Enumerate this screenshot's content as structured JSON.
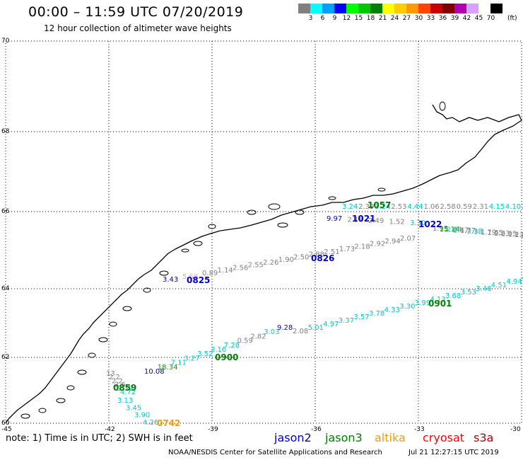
{
  "header": {
    "title": "00:00 – 11:59 UTC 07/20/2019",
    "subtitle": "12 hour collection of altimeter wave heights"
  },
  "color_scale": {
    "colors": [
      "#808080",
      "#00ffff",
      "#00a0ff",
      "#0000ff",
      "#00ff00",
      "#00c800",
      "#008000",
      "#ffff00",
      "#ffcc00",
      "#ff9900",
      "#ff4500",
      "#c80000",
      "#800000",
      "#b000b0",
      "#d8a0ff",
      "#ffffff",
      "#000000"
    ],
    "labels": [
      "3",
      "6",
      "9",
      "12",
      "15",
      "18",
      "21",
      "24",
      "27",
      "30",
      "33",
      "36",
      "39",
      "42",
      "45",
      "70"
    ],
    "unit": "(ft)"
  },
  "axes": {
    "lat_labels": [
      "70",
      "68",
      "66",
      "64",
      "62",
      "60"
    ],
    "lon_labels": [
      "-45",
      "-42",
      "-39",
      "-36",
      "-33",
      "-30"
    ]
  },
  "tracks": [
    {
      "satellite": "jason3",
      "time": "1057",
      "color": "#008000",
      "labels": [
        {
          "text": "3.24",
          "color": "#00c8c8"
        },
        {
          "text": "2.39",
          "color": "#808080"
        },
        {
          "text": "3.24",
          "color": "#00c8c8"
        },
        {
          "text": "2.53",
          "color": "#808080"
        },
        {
          "text": "4.44",
          "color": "#00c8c8"
        },
        {
          "text": "1.06",
          "color": "#808080"
        },
        {
          "text": "2.58",
          "color": "#808080"
        },
        {
          "text": "0.59",
          "color": "#808080"
        },
        {
          "text": "2.31",
          "color": "#808080"
        },
        {
          "text": "4.15",
          "color": "#00c8c8"
        },
        {
          "text": "4.10",
          "color": "#00c8c8"
        },
        {
          "text": "2",
          "color": "#808080"
        }
      ]
    },
    {
      "satellite": "jason2",
      "time": "1021",
      "color": "#0000c8",
      "labels": [
        {
          "text": "9.97",
          "color": "#0000c8"
        },
        {
          "text": "2.18",
          "color": "#808080"
        },
        {
          "text": "2.49",
          "color": "#808080"
        },
        {
          "text": "1.52",
          "color": "#808080"
        },
        {
          "text": "3.30",
          "color": "#00c8c8"
        }
      ]
    },
    {
      "satellite": "jason2",
      "time": "1022",
      "color": "#0000c8",
      "labels": [
        {
          "text": "1.95",
          "color": "#808080"
        },
        {
          "text": "15.14",
          "color": "#00a000"
        },
        {
          "text": "2.64",
          "color": "#00c8c8"
        },
        {
          "text": "2.47",
          "color": "#808080"
        },
        {
          "text": "1.77",
          "color": "#808080"
        },
        {
          "text": "3.18",
          "color": "#00c8c8"
        },
        {
          "text": "3.1",
          "color": "#00c8c8"
        },
        {
          "text": "1.79",
          "color": "#808080"
        },
        {
          "text": "1.65",
          "color": "#808080"
        },
        {
          "text": "2.63",
          "color": "#808080"
        },
        {
          "text": "2.05",
          "color": "#808080"
        },
        {
          "text": "1.13",
          "color": "#808080"
        },
        {
          "text": "2.24",
          "color": "#808080"
        },
        {
          "text": "2.0",
          "color": "#808080"
        }
      ]
    },
    {
      "satellite": "jason2",
      "time": "0826",
      "color": "#0000c8",
      "labels": [
        {
          "text": "0.89",
          "color": "#808080"
        },
        {
          "text": "1.14",
          "color": "#808080"
        },
        {
          "text": "2.56",
          "color": "#808080"
        },
        {
          "text": "2.55",
          "color": "#808080"
        },
        {
          "text": "2.26",
          "color": "#808080"
        },
        {
          "text": "1.90",
          "color": "#808080"
        },
        {
          "text": "2.50",
          "color": "#808080"
        },
        {
          "text": "2.88",
          "color": "#808080"
        },
        {
          "text": "2.51",
          "color": "#808080"
        },
        {
          "text": "1.73",
          "color": "#808080"
        },
        {
          "text": "2.18",
          "color": "#808080"
        },
        {
          "text": "2.92",
          "color": "#808080"
        },
        {
          "text": "2.94",
          "color": "#808080"
        },
        {
          "text": "2.07",
          "color": "#808080"
        }
      ]
    },
    {
      "satellite": "jason2",
      "time": "0825",
      "color": "#0000c8",
      "labels": [
        {
          "text": "3.43",
          "color": "#0000c8"
        },
        {
          "text": "5.68",
          "color": "#d8a0ff"
        }
      ]
    },
    {
      "satellite": "jason3",
      "time": "0901",
      "color": "#008000",
      "labels": [
        {
          "text": "2.08",
          "color": "#808080"
        },
        {
          "text": "5.01",
          "color": "#00c8c8"
        },
        {
          "text": "4.97",
          "color": "#00c8c8"
        },
        {
          "text": "3.37",
          "color": "#00c8c8"
        },
        {
          "text": "3.57",
          "color": "#00c8c8"
        },
        {
          "text": "3.78",
          "color": "#00c8c8"
        },
        {
          "text": "4.33",
          "color": "#00c8c8"
        },
        {
          "text": "3.30",
          "color": "#00c8c8"
        },
        {
          "text": "3.99",
          "color": "#00c8c8"
        },
        {
          "text": "4.13",
          "color": "#00c8c8"
        },
        {
          "text": "3.68",
          "color": "#00c8c8"
        },
        {
          "text": "3.53",
          "color": "#00c8c8"
        },
        {
          "text": "3.46",
          "color": "#00c8c8"
        },
        {
          "text": "4.51",
          "color": "#00c8c8"
        },
        {
          "text": "4.94",
          "color": "#00c8c8"
        },
        {
          "text": "4.91",
          "color": "#00c8c8"
        }
      ]
    },
    {
      "satellite": "jason3",
      "time": "0900",
      "color": "#008000",
      "labels": [
        {
          "text": "10.08",
          "color": "#0000c8"
        },
        {
          "text": "18.34",
          "color": "#00a000"
        },
        {
          "text": "7.11",
          "color": "#00c8c8"
        },
        {
          "text": "3.27",
          "color": "#00c8c8"
        },
        {
          "text": "3.52",
          "color": "#00c8c8"
        },
        {
          "text": "3.16",
          "color": "#00c8c8"
        },
        {
          "text": "7.28",
          "color": "#00c8c8"
        },
        {
          "text": "0.59",
          "color": "#808080"
        },
        {
          "text": "2.82",
          "color": "#808080"
        },
        {
          "text": "3.03",
          "color": "#00c8c8"
        },
        {
          "text": "9.28",
          "color": "#0000c8"
        }
      ]
    },
    {
      "satellite": "jason3",
      "time": "0859",
      "color": "#008000",
      "labels": [
        {
          "text": "13",
          "color": "#808080"
        },
        {
          "text": "2.2",
          "color": "#808080"
        },
        {
          "text": "2.2",
          "color": "#808080"
        },
        {
          "text": "2.6",
          "color": "#808080"
        },
        {
          "text": "3.39",
          "color": "#00c8c8"
        },
        {
          "text": "4.72",
          "color": "#00c8c8"
        }
      ]
    },
    {
      "satellite": "altika",
      "time": "0742",
      "color": "#ff9900",
      "labels": [
        {
          "text": "3.13",
          "color": "#00c8c8"
        },
        {
          "text": "3.45",
          "color": "#00c8c8"
        },
        {
          "text": "3.90",
          "color": "#00c8c8"
        },
        {
          "text": "4.26",
          "color": "#00c8c8"
        }
      ]
    }
  ],
  "note": "note:  1) Time is in UTC;  2) SWH is in feet",
  "legend": [
    {
      "name": "jason2",
      "color": "#0000c8"
    },
    {
      "name": "jason3",
      "color": "#008000"
    },
    {
      "name": "altika",
      "color": "#ff9900"
    },
    {
      "name": "cryosat",
      "color": "#ff0000"
    },
    {
      "name": "s3a",
      "color": "#b00000"
    }
  ],
  "footer": {
    "credit": "NOAA/NESDIS Center for Satellite Applications and Research",
    "timestamp": "Jul 21 12:27:15 UTC 2019"
  }
}
